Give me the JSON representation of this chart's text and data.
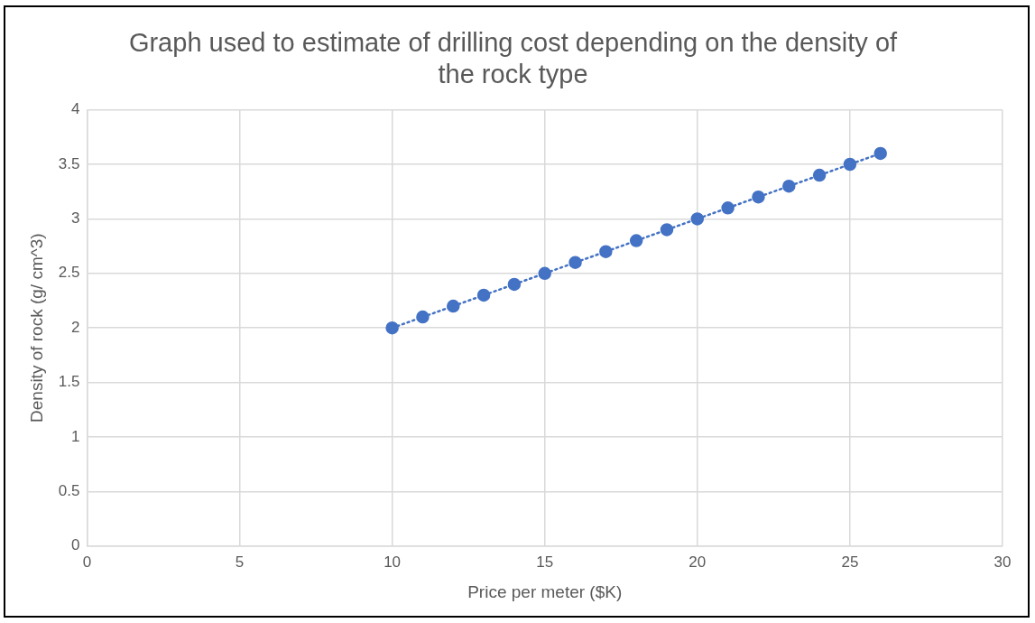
{
  "chart_data": {
    "type": "line",
    "title": "Graph used to estimate of drilling cost depending on the density of the rock type",
    "xlabel": "Price per meter ($K)",
    "ylabel": "Density of rock (g/ cm^3)",
    "x": [
      10,
      11,
      12,
      13,
      14,
      15,
      16,
      17,
      18,
      19,
      20,
      21,
      22,
      23,
      24,
      25,
      26
    ],
    "series": [
      {
        "color": "#4472c4",
        "values": [
          2.0,
          2.1,
          2.2,
          2.3,
          2.4,
          2.5,
          2.6,
          2.7,
          2.8,
          2.9,
          3.0,
          3.1,
          3.2,
          3.3,
          3.4,
          3.5,
          3.6
        ]
      }
    ],
    "xlim": [
      0,
      30
    ],
    "xticks": [
      0,
      5,
      10,
      15,
      20,
      25,
      30
    ],
    "ylim": [
      0,
      4
    ],
    "yticks": [
      0,
      0.5,
      1,
      1.5,
      2,
      2.5,
      3,
      3.5,
      4
    ],
    "grid": true,
    "legend": false,
    "marker": "circle",
    "line_style": "dotted"
  }
}
